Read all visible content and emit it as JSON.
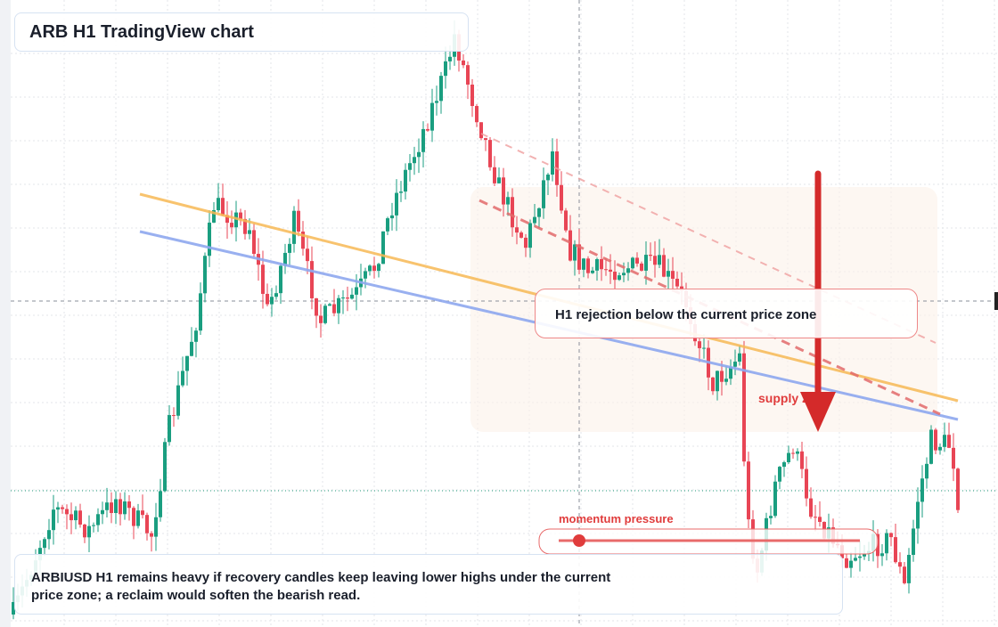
{
  "header": {
    "title": "ARB H1 TradingView chart"
  },
  "annotations": {
    "rejection": "H1 rejection below the current price zone",
    "zone": "supply zone",
    "momentum": "momentum pressure"
  },
  "footer": {
    "text": "ARBIUSD H1 remains heavy if recovery candles keep leaving lower highs under the current price zone; a reclaim would soften the bearish read."
  }
}
